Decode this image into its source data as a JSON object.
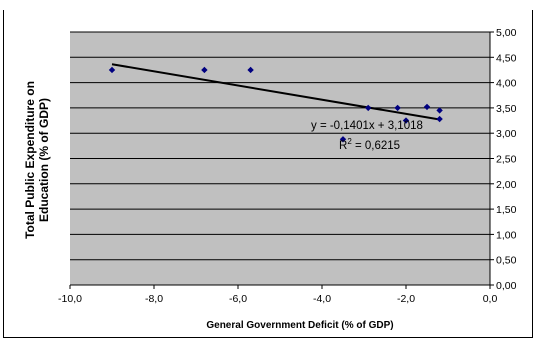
{
  "chart_data": {
    "type": "scatter",
    "xlabel": "General Government Deficit (% of GDP)",
    "ylabel": "Total Public Expenditure on Education (% of GDP)",
    "xlim": [
      -10,
      0
    ],
    "ylim": [
      0,
      5
    ],
    "x_ticks": [
      "-10,0",
      "-8,0",
      "-6,0",
      "-4,0",
      "-2,0",
      "0,0"
    ],
    "y_ticks": [
      "0,00",
      "0,50",
      "1,00",
      "1,50",
      "2,00",
      "2,50",
      "3,00",
      "3,50",
      "4,00",
      "4,50",
      "5,00"
    ],
    "y_axis_side": "right",
    "grid": "horizontal",
    "points": [
      {
        "x": -9.0,
        "y": 4.25
      },
      {
        "x": -6.8,
        "y": 4.25
      },
      {
        "x": -5.7,
        "y": 4.25
      },
      {
        "x": -3.5,
        "y": 2.88
      },
      {
        "x": -2.9,
        "y": 3.5
      },
      {
        "x": -2.2,
        "y": 3.5
      },
      {
        "x": -2.0,
        "y": 3.25
      },
      {
        "x": -1.5,
        "y": 3.52
      },
      {
        "x": -1.2,
        "y": 3.45
      },
      {
        "x": -1.2,
        "y": 3.28
      }
    ],
    "trendline": {
      "slope": -0.1401,
      "intercept": 3.1018,
      "x_range": [
        -9.0,
        -1.2
      ],
      "equation_text": "y = -0,1401x + 3,1018",
      "r2_prefix": "R",
      "r2_sup": "2",
      "r2_value": " = 0,6215"
    },
    "colors": {
      "plot_background": "#c0c0c0",
      "gridline": "#000000",
      "marker": "#000080",
      "trendline": "#000000"
    }
  }
}
